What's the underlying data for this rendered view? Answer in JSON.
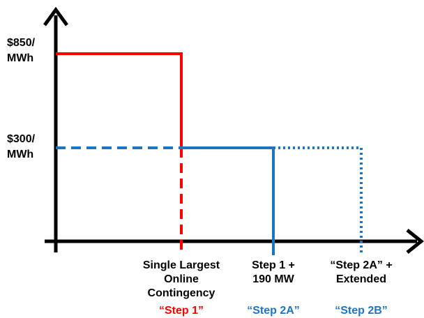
{
  "price_levels": [
    {
      "lines": [
        "$850/",
        "MWh"
      ]
    },
    {
      "lines": [
        "$300/",
        "MWh"
      ]
    }
  ],
  "steps": [
    {
      "lines": [
        "Single Largest",
        "Online",
        "Contingency"
      ],
      "name": "“Step 1”"
    },
    {
      "lines": [
        "Step 1 +",
        "190 MW"
      ],
      "name": "“Step 2A”"
    },
    {
      "lines": [
        "“Step 2A” +",
        "Extended"
      ],
      "name": "“Step 2B”"
    }
  ]
}
